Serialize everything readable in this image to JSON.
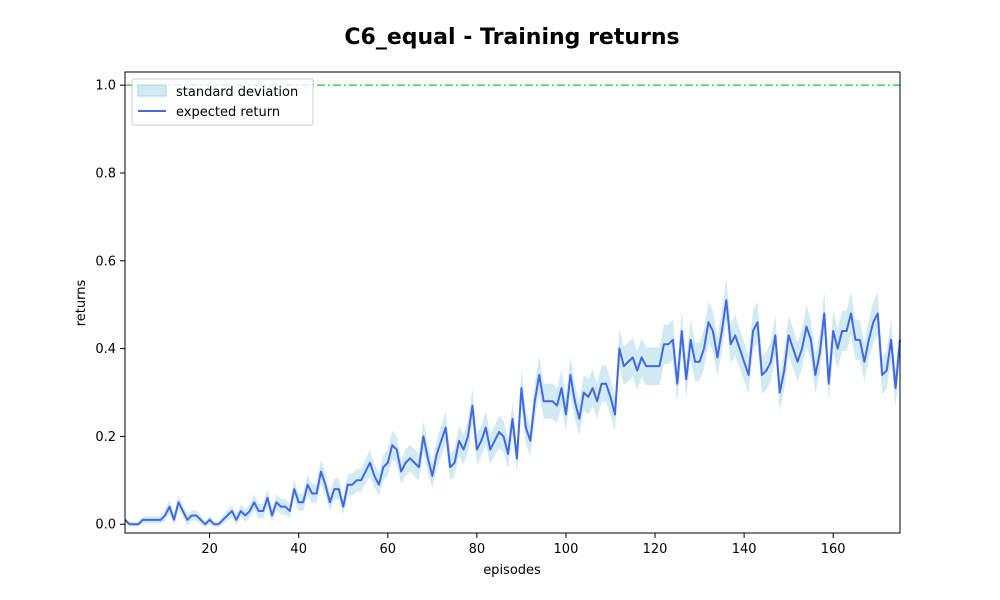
{
  "chart_data": {
    "type": "line",
    "title": "C6_equal - Training returns",
    "xlabel": "episodes",
    "ylabel": "returns",
    "xlim": [
      1,
      175
    ],
    "ylim": [
      -0.02,
      1.03
    ],
    "xticks": [
      20,
      40,
      60,
      80,
      100,
      120,
      140,
      160
    ],
    "yticks": [
      0.0,
      0.2,
      0.4,
      0.6,
      0.8,
      1.0
    ],
    "xtick_labels": [
      "20",
      "40",
      "60",
      "80",
      "100",
      "120",
      "140",
      "160"
    ],
    "ytick_labels": [
      "0.0",
      "0.2",
      "0.4",
      "0.6",
      "0.8",
      "1.0"
    ],
    "legend": {
      "position": "upper-left",
      "entries": [
        {
          "label": "standard deviation",
          "kind": "band",
          "color": "#add8e6"
        },
        {
          "label": "expected return",
          "kind": "line",
          "color": "#4169e1"
        }
      ]
    },
    "reference_line": {
      "y": 1.0,
      "color": "#32cd32",
      "style": "dash-dot"
    },
    "x_start": 1,
    "series": [
      {
        "name": "expected return",
        "color": "#4169e1",
        "values": [
          0.01,
          0.0,
          0.0,
          0.0,
          0.01,
          0.01,
          0.01,
          0.01,
          0.01,
          0.02,
          0.04,
          0.01,
          0.05,
          0.03,
          0.01,
          0.02,
          0.02,
          0.01,
          0.0,
          0.01,
          0.0,
          0.0,
          0.01,
          0.02,
          0.03,
          0.01,
          0.03,
          0.02,
          0.03,
          0.05,
          0.03,
          0.03,
          0.06,
          0.02,
          0.05,
          0.04,
          0.04,
          0.03,
          0.08,
          0.05,
          0.05,
          0.09,
          0.07,
          0.07,
          0.12,
          0.09,
          0.05,
          0.08,
          0.08,
          0.04,
          0.09,
          0.09,
          0.1,
          0.1,
          0.12,
          0.14,
          0.11,
          0.09,
          0.13,
          0.14,
          0.18,
          0.17,
          0.12,
          0.14,
          0.15,
          0.14,
          0.13,
          0.2,
          0.15,
          0.11,
          0.16,
          0.19,
          0.22,
          0.13,
          0.14,
          0.19,
          0.17,
          0.2,
          0.27,
          0.17,
          0.19,
          0.22,
          0.17,
          0.19,
          0.21,
          0.2,
          0.16,
          0.24,
          0.15,
          0.31,
          0.22,
          0.19,
          0.28,
          0.34,
          0.28,
          0.28,
          0.28,
          0.27,
          0.31,
          0.25,
          0.34,
          0.28,
          0.24,
          0.3,
          0.29,
          0.31,
          0.28,
          0.32,
          0.32,
          0.29,
          0.25,
          0.4,
          0.36,
          0.37,
          0.38,
          0.35,
          0.38,
          0.36,
          0.36,
          0.36,
          0.36,
          0.41,
          0.41,
          0.42,
          0.32,
          0.44,
          0.33,
          0.42,
          0.37,
          0.37,
          0.4,
          0.46,
          0.44,
          0.38,
          0.44,
          0.51,
          0.41,
          0.43,
          0.4,
          0.37,
          0.34,
          0.44,
          0.46,
          0.34,
          0.35,
          0.37,
          0.43,
          0.3,
          0.35,
          0.43,
          0.4,
          0.37,
          0.4,
          0.45,
          0.42,
          0.34,
          0.39,
          0.48,
          0.32,
          0.44,
          0.4,
          0.44,
          0.44,
          0.48,
          0.42,
          0.42,
          0.37,
          0.42,
          0.46,
          0.48,
          0.34,
          0.35,
          0.42,
          0.31,
          0.42
        ]
      }
    ],
    "std_band": {
      "name": "standard deviation",
      "color": "#add8e6",
      "values": [
        0.005,
        0.005,
        0.005,
        0.005,
        0.008,
        0.008,
        0.008,
        0.008,
        0.008,
        0.012,
        0.015,
        0.012,
        0.015,
        0.013,
        0.012,
        0.012,
        0.012,
        0.01,
        0.006,
        0.01,
        0.006,
        0.006,
        0.01,
        0.012,
        0.014,
        0.012,
        0.014,
        0.014,
        0.015,
        0.018,
        0.016,
        0.016,
        0.02,
        0.016,
        0.018,
        0.018,
        0.018,
        0.016,
        0.022,
        0.02,
        0.02,
        0.024,
        0.022,
        0.022,
        0.028,
        0.025,
        0.02,
        0.024,
        0.024,
        0.018,
        0.025,
        0.025,
        0.026,
        0.026,
        0.028,
        0.03,
        0.027,
        0.025,
        0.029,
        0.03,
        0.033,
        0.032,
        0.028,
        0.03,
        0.031,
        0.03,
        0.03,
        0.036,
        0.031,
        0.028,
        0.033,
        0.035,
        0.037,
        0.03,
        0.031,
        0.035,
        0.034,
        0.036,
        0.04,
        0.034,
        0.035,
        0.037,
        0.034,
        0.035,
        0.037,
        0.036,
        0.033,
        0.038,
        0.032,
        0.042,
        0.037,
        0.035,
        0.04,
        0.043,
        0.04,
        0.04,
        0.04,
        0.04,
        0.042,
        0.038,
        0.043,
        0.04,
        0.038,
        0.041,
        0.04,
        0.042,
        0.04,
        0.042,
        0.042,
        0.041,
        0.038,
        0.045,
        0.043,
        0.044,
        0.044,
        0.043,
        0.044,
        0.043,
        0.043,
        0.043,
        0.043,
        0.045,
        0.045,
        0.046,
        0.042,
        0.046,
        0.042,
        0.046,
        0.044,
        0.044,
        0.045,
        0.047,
        0.046,
        0.044,
        0.046,
        0.048,
        0.045,
        0.046,
        0.045,
        0.044,
        0.043,
        0.046,
        0.047,
        0.043,
        0.043,
        0.044,
        0.046,
        0.042,
        0.043,
        0.046,
        0.045,
        0.044,
        0.045,
        0.047,
        0.046,
        0.043,
        0.045,
        0.048,
        0.042,
        0.046,
        0.045,
        0.046,
        0.046,
        0.048,
        0.046,
        0.046,
        0.044,
        0.046,
        0.047,
        0.048,
        0.043,
        0.043,
        0.046,
        0.042,
        0.046
      ]
    }
  }
}
